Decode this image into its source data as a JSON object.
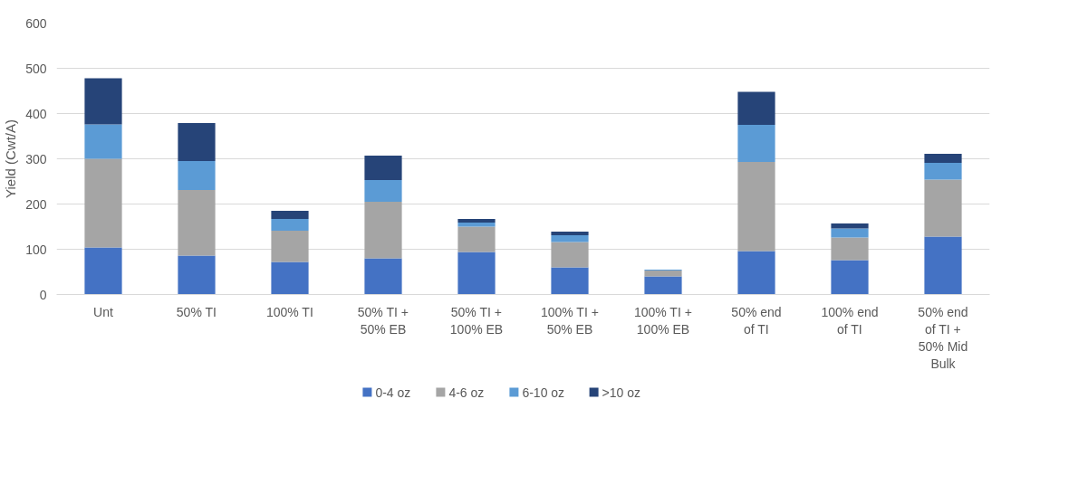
{
  "chart_data": {
    "type": "bar",
    "stacked": true,
    "ylabel": "Yield (Cwt/A)",
    "categories": [
      "Unt",
      "50% TI",
      "100% TI",
      "50% TI +\n50% EB",
      "50% TI +\n100% EB",
      "100% TI +\n50% EB",
      "100% TI +\n100% EB",
      "50% end\nof TI",
      "100% end\nof TI",
      "50% end\nof TI +\n50% Mid\nBulk"
    ],
    "series": [
      {
        "name": "0-4 oz",
        "color": "#4472c4",
        "values": [
          104,
          86,
          72,
          80,
          94,
          60,
          40,
          96,
          76,
          128
        ]
      },
      {
        "name": "4-6 oz",
        "color": "#a5a5a5",
        "values": [
          196,
          145,
          69,
          125,
          56,
          56,
          13,
          197,
          50,
          126
        ]
      },
      {
        "name": "6-10 oz",
        "color": "#5b9bd5",
        "values": [
          76,
          64,
          26,
          48,
          9,
          15,
          2,
          82,
          20,
          37
        ]
      },
      {
        "name": ">10 oz",
        "color": "#264478",
        "values": [
          102,
          84,
          18,
          54,
          8,
          8,
          null,
          73,
          11,
          20
        ]
      }
    ],
    "ylim": [
      0,
      600
    ],
    "yticks": [
      0,
      100,
      200,
      300,
      400,
      500,
      600
    ],
    "grid": "y",
    "legend": "bottom"
  }
}
